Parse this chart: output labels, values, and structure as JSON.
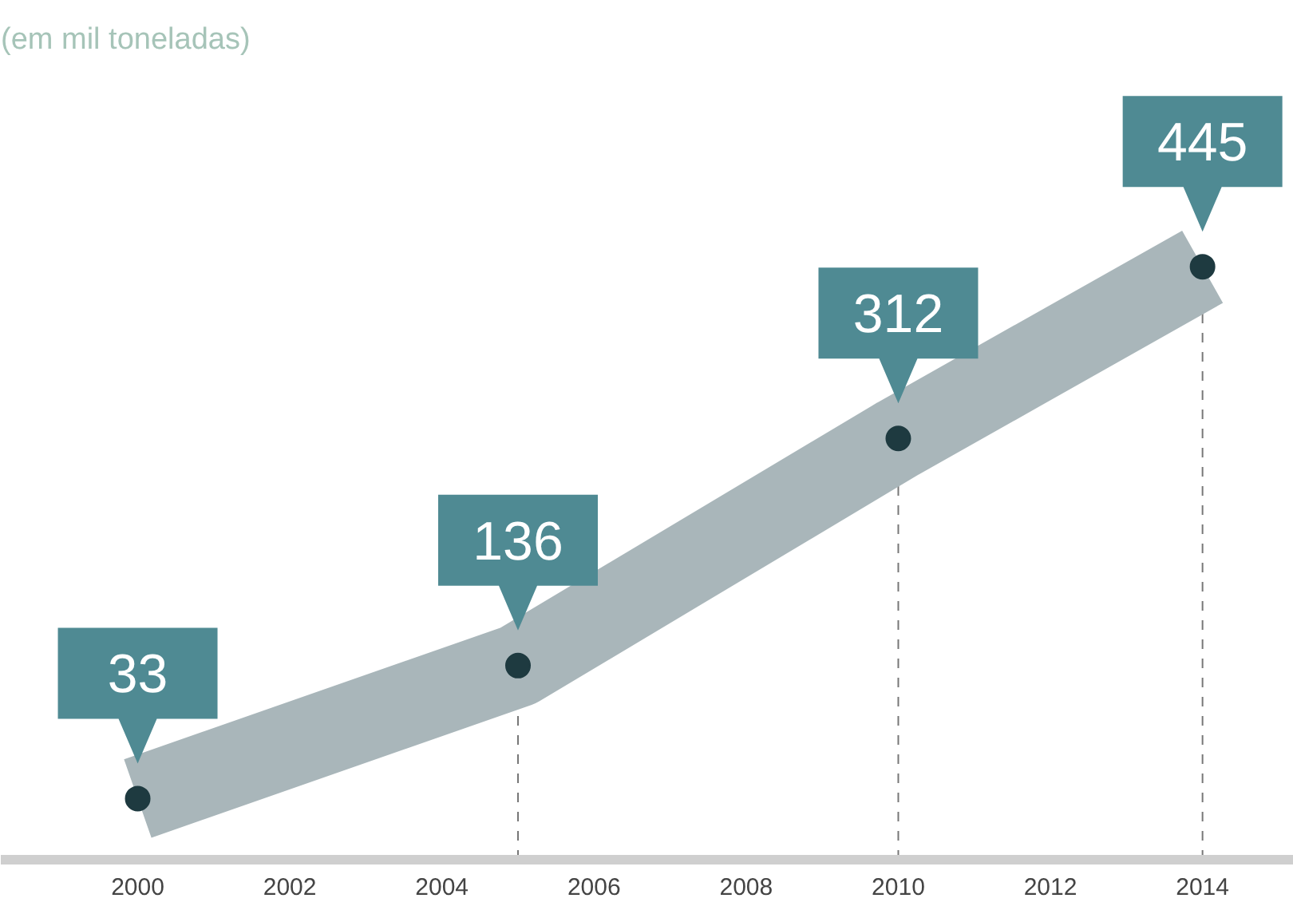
{
  "chart_data": {
    "type": "line",
    "title": "(em mil toneladas)",
    "x": [
      2000,
      2005,
      2010,
      2014
    ],
    "series": [
      {
        "color": "#a9b6ba",
        "values": [
          33,
          136,
          312,
          445
        ]
      }
    ],
    "xlim": [
      1998.2,
      2015.2
    ],
    "xticks": [
      2000,
      2002,
      2004,
      2006,
      2008,
      2010,
      2012,
      2014
    ],
    "ref_lines": [
      {
        "axis": "x",
        "value": 2005,
        "color": "#777777",
        "line_style": "dashed"
      },
      {
        "axis": "x",
        "value": 2010,
        "color": "#777777",
        "line_style": "dashed"
      },
      {
        "axis": "x",
        "value": 2014,
        "color": "#777777",
        "line_style": "dashed"
      }
    ],
    "tick_labels": "x",
    "marker": "circle",
    "line_style": "solid",
    "data_labels": true
  }
}
